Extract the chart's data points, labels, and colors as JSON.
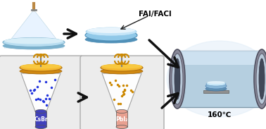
{
  "fai_facl_label": "FAI/FACl",
  "temp_label": "160℃",
  "csbr_label": "CsBr",
  "pbi2_label": "PbI₂",
  "arrow_color": "#111111",
  "box_fc": "#ececec",
  "box_ec": "#aaaaaa",
  "orange_plate_top": "#f5b830",
  "orange_plate_bot": "#d08810",
  "funnel_ec": "#999999",
  "blue_dot": "#2233dd",
  "orange_dot": "#cc8800",
  "csbr_tube_color": "#4040bb",
  "pbi2_tube_color": "#e8a090",
  "tube_body": "#b5cfe0",
  "tube_body_light": "#d8eaf8",
  "tube_body_dark": "#8099aa",
  "tube_ring_outer": "#888898",
  "tube_ring_mid": "#b8c8d8",
  "tube_ring_hole": "#404858",
  "spin_cone_fill": "#ddeeff",
  "spin_cone_ec": "#aaccdd",
  "spin_disk_top": "#b8ddf0",
  "spin_disk_bot": "#7ab0cc",
  "flat_disk_top": "#c5e5f8",
  "flat_disk_mid": "#90c8e8",
  "flat_disk_bot": "#5090b8",
  "stir_bar_color": "#cc8800",
  "shaft_color": "#808080",
  "nozzle_color": "#bb8844",
  "sample_disk_top": "#c8e8f8",
  "sample_disk_bot": "#6090b0"
}
